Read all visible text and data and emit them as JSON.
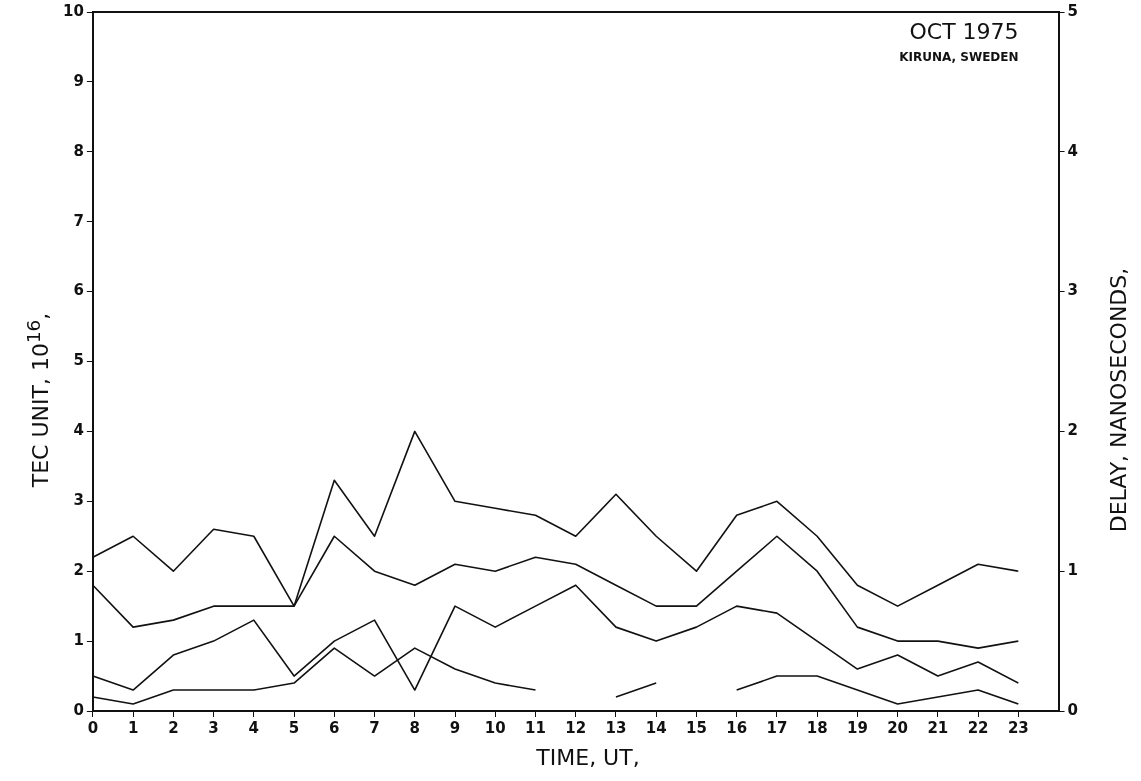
{
  "chart_data": {
    "type": "line",
    "xlabel": "TIME, UT,",
    "ylabel": "TEC UNIT, 10$^{16}$,",
    "y2label": "DELAY, NANOSECONDS,",
    "annotations": [
      "OCT 1975",
      "KIRUNA, SWEDEN"
    ],
    "x": [
      0,
      1,
      2,
      3,
      4,
      5,
      6,
      7,
      8,
      9,
      10,
      11,
      12,
      13,
      14,
      15,
      16,
      17,
      18,
      19,
      20,
      21,
      22,
      23
    ],
    "xlim": [
      0,
      24
    ],
    "xticks": [
      0,
      1,
      2,
      3,
      4,
      5,
      6,
      7,
      8,
      9,
      10,
      11,
      12,
      13,
      14,
      15,
      16,
      17,
      18,
      19,
      20,
      21,
      22,
      23
    ],
    "ylim": [
      0,
      10
    ],
    "yticks": [
      0,
      1,
      2,
      3,
      4,
      5,
      6,
      7,
      8,
      9,
      10
    ],
    "y2lim": [
      0,
      5
    ],
    "y2ticks": [
      0,
      1,
      2,
      3,
      4,
      5
    ],
    "grid": false,
    "legend": false,
    "marker": "none",
    "line_style": "solid",
    "series": [
      {
        "color": "#111111",
        "values": [
          2.2,
          2.5,
          2.0,
          2.6,
          2.5,
          1.5,
          3.3,
          2.5,
          4.0,
          3.0,
          2.9,
          2.8,
          2.5,
          3.1,
          2.5,
          2.0,
          2.8,
          3.0,
          2.5,
          1.8,
          1.5,
          1.8,
          2.1,
          2.0
        ]
      },
      {
        "color": "#111111",
        "values": [
          1.8,
          1.2,
          1.3,
          1.5,
          1.5,
          1.5,
          2.5,
          2.0,
          1.8,
          2.1,
          2.0,
          2.2,
          2.1,
          1.8,
          1.5,
          1.5,
          2.0,
          2.5,
          2.0,
          1.2,
          1.0,
          1.0,
          0.9,
          1.0
        ]
      },
      {
        "color": "#111111",
        "values": [
          0.5,
          0.3,
          0.8,
          1.0,
          1.3,
          0.5,
          1.0,
          1.3,
          0.3,
          1.5,
          1.2,
          1.5,
          1.8,
          1.2,
          1.0,
          1.2,
          1.5,
          1.4,
          1.0,
          0.6,
          0.8,
          0.5,
          0.7,
          0.4
        ]
      },
      {
        "color": "#111111",
        "values": [
          0.2,
          0.1,
          0.3,
          0.3,
          0.3,
          0.4,
          0.9,
          0.5,
          0.9,
          0.6,
          0.4,
          0.3,
          null,
          0.2,
          0.4,
          null,
          0.3,
          0.5,
          0.5,
          0.3,
          0.1,
          0.2,
          0.3,
          0.1
        ]
      }
    ]
  }
}
